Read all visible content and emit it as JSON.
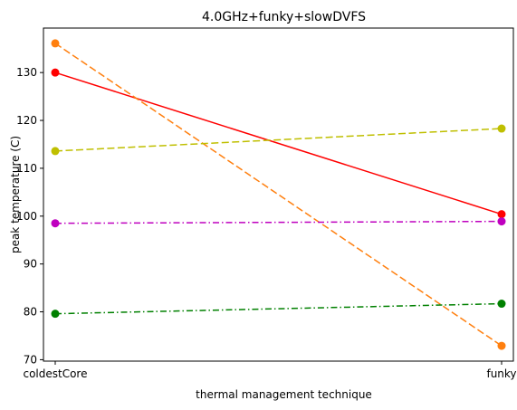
{
  "chart_data": {
    "type": "line",
    "title": "4.0GHz+funky+slowDVFS",
    "xlabel": "thermal management technique",
    "ylabel": "peak temperature (C)",
    "categories": [
      "coldestCore",
      "funky"
    ],
    "ylim": [
      69.7,
      139.3
    ],
    "yticks": [
      70,
      80,
      90,
      100,
      110,
      120,
      130
    ],
    "grid": false,
    "legend": "none",
    "series": [
      {
        "values": [
          130.0,
          100.4
        ],
        "color": "#ff0000",
        "linestyle": "solid"
      },
      {
        "values": [
          136.1,
          72.9
        ],
        "color": "#ff7f0e",
        "linestyle": "dashed"
      },
      {
        "values": [
          113.6,
          118.3
        ],
        "color": "#bfbf00",
        "linestyle": "dashed"
      },
      {
        "values": [
          98.5,
          98.9
        ],
        "color": "#bf00bf",
        "linestyle": "dashdot"
      },
      {
        "values": [
          79.6,
          81.7
        ],
        "color": "#008000",
        "linestyle": "dashdot"
      }
    ]
  }
}
